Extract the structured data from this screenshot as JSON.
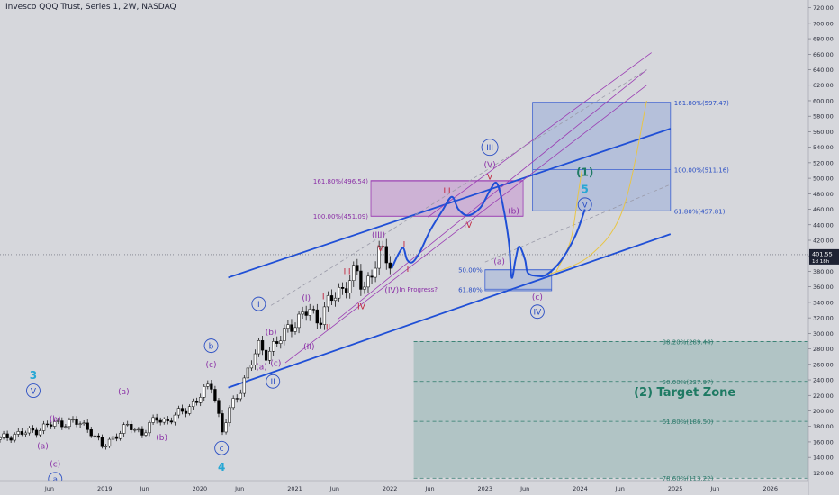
{
  "chart_data": {
    "type": "candlestick",
    "title": "Invesco QQQ Trust, Series 1, 2W, NASDAQ",
    "ylim": [
      110,
      730
    ],
    "y_ticks": [
      120,
      140,
      160,
      180,
      200,
      220,
      240,
      260,
      280,
      300,
      320,
      340,
      360,
      380,
      400,
      420,
      440,
      460,
      480,
      500,
      520,
      540,
      560,
      580,
      600,
      620,
      640,
      660,
      680,
      700,
      720
    ],
    "y_tick_labels": [
      "120.00",
      "140.00",
      "160.00",
      "180.00",
      "200.00",
      "220.00",
      "240.00",
      "260.00",
      "280.00",
      "300.00",
      "320.00",
      "340.00",
      "360.00",
      "380.00",
      "400.00",
      "420.00",
      "440.00",
      "460.00",
      "480.00",
      "500.00",
      "520.00",
      "540.00",
      "560.00",
      "580.00",
      "600.00",
      "620.00",
      "640.00",
      "660.00",
      "680.00",
      "700.00",
      "720.00"
    ],
    "x_range": [
      2017.9,
      2026.4
    ],
    "x_ticks": [
      {
        "t": 2018.42,
        "label": "Jun"
      },
      {
        "t": 2019.0,
        "label": "2019"
      },
      {
        "t": 2019.42,
        "label": "Jun"
      },
      {
        "t": 2020.0,
        "label": "2020"
      },
      {
        "t": 2020.42,
        "label": "Jun"
      },
      {
        "t": 2021.0,
        "label": "2021"
      },
      {
        "t": 2021.42,
        "label": "Jun"
      },
      {
        "t": 2022.0,
        "label": "2022"
      },
      {
        "t": 2022.42,
        "label": "Jun"
      },
      {
        "t": 2023.0,
        "label": "2023"
      },
      {
        "t": 2023.42,
        "label": "Jun"
      },
      {
        "t": 2024.0,
        "label": "2024"
      },
      {
        "t": 2024.42,
        "label": "Jun"
      },
      {
        "t": 2025.0,
        "label": "2025"
      },
      {
        "t": 2025.42,
        "label": "Jun"
      },
      {
        "t": 2026.0,
        "label": "2026"
      }
    ],
    "last_price": {
      "value": 401.55,
      "label": "401.55",
      "sublabel": "1d 18h"
    },
    "candles_anchor": [
      [
        2017.9,
        163
      ],
      [
        2018.05,
        170
      ],
      [
        2018.2,
        172
      ],
      [
        2018.4,
        181
      ],
      [
        2018.6,
        186
      ],
      [
        2018.75,
        183
      ],
      [
        2018.85,
        176
      ],
      [
        2018.98,
        152
      ],
      [
        2019.1,
        168
      ],
      [
        2019.25,
        180
      ],
      [
        2019.4,
        172
      ],
      [
        2019.55,
        190
      ],
      [
        2019.65,
        187
      ],
      [
        2019.8,
        197
      ],
      [
        2019.95,
        212
      ],
      [
        2020.05,
        224
      ],
      [
        2020.12,
        236
      ],
      [
        2020.18,
        210
      ],
      [
        2020.23,
        170
      ],
      [
        2020.3,
        196
      ],
      [
        2020.4,
        222
      ],
      [
        2020.5,
        250
      ],
      [
        2020.62,
        282
      ],
      [
        2020.7,
        276
      ],
      [
        2020.83,
        288
      ],
      [
        2020.95,
        312
      ],
      [
        2021.05,
        318
      ],
      [
        2021.15,
        330
      ],
      [
        2021.25,
        318
      ],
      [
        2021.35,
        338
      ],
      [
        2021.45,
        352
      ],
      [
        2021.55,
        366
      ],
      [
        2021.65,
        378
      ],
      [
        2021.72,
        355
      ],
      [
        2021.8,
        380
      ],
      [
        2021.9,
        403
      ],
      [
        2021.98,
        396
      ],
      [
        2022.02,
        384
      ]
    ],
    "trendlines": [
      {
        "name": "upper-channel",
        "p1": [
          2020.3,
          372
        ],
        "p2": [
          2024.95,
          564
        ],
        "color": "#1f4fd6",
        "width": 1.8
      },
      {
        "name": "lower-channel",
        "p1": [
          2020.3,
          230
        ],
        "p2": [
          2024.95,
          428
        ],
        "color": "#1f4fd6",
        "width": 1.8
      },
      {
        "name": "purple-upper",
        "p1": [
          2022.4,
          450
        ],
        "p2": [
          2024.75,
          662
        ],
        "color": "#9b3db3",
        "width": 0.8
      },
      {
        "name": "purple-mid",
        "p1": [
          2021.45,
          318
        ],
        "p2": [
          2024.7,
          640
        ],
        "color": "#9b3db3",
        "width": 0.8
      },
      {
        "name": "purple-lower",
        "p1": [
          2020.9,
          262
        ],
        "p2": [
          2024.7,
          620
        ],
        "color": "#9b3db3",
        "width": 0.8
      },
      {
        "name": "gray-dashed-upper",
        "p1": [
          2020.75,
          336
        ],
        "p2": [
          2024.7,
          640
        ],
        "color": "#9a9aa8",
        "width": 0.8,
        "dash": true
      },
      {
        "name": "gray-dashed-lower",
        "p1": [
          2023.0,
          392
        ],
        "p2": [
          2024.95,
          492
        ],
        "color": "#9a9aa8",
        "width": 0.8,
        "dash": true
      }
    ],
    "projection_path": [
      [
        2022.02,
        384
      ],
      [
        2022.08,
        400
      ],
      [
        2022.14,
        410
      ],
      [
        2022.18,
        395
      ],
      [
        2022.24,
        392
      ],
      [
        2022.32,
        406
      ],
      [
        2022.42,
        432
      ],
      [
        2022.55,
        458
      ],
      [
        2022.65,
        476
      ],
      [
        2022.72,
        460
      ],
      [
        2022.82,
        452
      ],
      [
        2022.95,
        462
      ],
      [
        2023.05,
        484
      ],
      [
        2023.12,
        494
      ],
      [
        2023.18,
        470
      ],
      [
        2023.25,
        418
      ],
      [
        2023.28,
        372
      ],
      [
        2023.32,
        395
      ],
      [
        2023.36,
        412
      ],
      [
        2023.42,
        395
      ],
      [
        2023.45,
        378
      ],
      [
        2023.55,
        374
      ],
      [
        2023.65,
        376
      ],
      [
        2023.8,
        394
      ],
      [
        2023.95,
        426
      ],
      [
        2024.05,
        460
      ]
    ],
    "yellow_curves": [
      [
        [
          2023.75,
          380
        ],
        [
          2023.9,
          420
        ],
        [
          2023.98,
          480
        ],
        [
          2024.02,
          512
        ]
      ],
      [
        [
          2023.65,
          375
        ],
        [
          2024.1,
          400
        ],
        [
          2024.45,
          460
        ],
        [
          2024.7,
          600
        ]
      ]
    ],
    "fib_boxes": [
      {
        "name": "purple-fib-box",
        "x1": 2021.8,
        "x2": 2023.4,
        "y1": 451,
        "y2": 497,
        "fill": "rgba(190,110,200,0.35)",
        "stroke": "#9b3db3",
        "levels": [
          {
            "value": 496.54,
            "label": "161.80%(496.54)"
          },
          {
            "value": 451.09,
            "label": "100.00%(451.09)"
          }
        ],
        "label_color": "#8a2fa6"
      },
      {
        "name": "blue-fib-box",
        "x1": 2023.5,
        "x2": 2024.95,
        "y1": 458,
        "y2": 598,
        "fill": "rgba(120,150,215,0.35)",
        "stroke": "#3b5fd0",
        "levels": [
          {
            "value": 597.47,
            "label": "161.80%(597.47)"
          },
          {
            "value": 511.16,
            "label": "100.00%(511.16)"
          },
          {
            "value": 457.81,
            "label": "61.80%(457.81)"
          }
        ],
        "label_color": "#2b4fc4"
      },
      {
        "name": "small-fib-box",
        "x1": 2023.0,
        "x2": 2023.7,
        "y1": 355,
        "y2": 382,
        "fill": "rgba(120,150,215,0.30)",
        "stroke": "#3b5fd0",
        "levels": [
          {
            "value": 382,
            "label": "50.00%"
          },
          {
            "value": 357,
            "label": "61.80%"
          }
        ],
        "label_color": "#2b4fc4"
      },
      {
        "name": "target-zone-box",
        "x1": 2022.25,
        "x2": 2026.4,
        "y1": 114,
        "y2": 290,
        "fill": "rgba(110,160,155,0.35)",
        "stroke": "none",
        "levels": [
          {
            "value": 289.44,
            "label": "38.20%(289.44)"
          },
          {
            "value": 237.97,
            "label": "50.00%(237.97)"
          },
          {
            "value": 186.5,
            "label": "61.80%(186.50)"
          },
          {
            "value": 113.22,
            "label": "78.60%(113.22)"
          }
        ],
        "label_color": "#2c7a6b"
      }
    ],
    "target_zone_label": {
      "text": "(2)  Target Zone",
      "t": 2025.1,
      "v": 219,
      "color": "#1e7a63"
    },
    "wave_labels": [
      {
        "text": "3",
        "t": 2018.25,
        "v": 246,
        "color": "#27a7d4",
        "size": 12,
        "bold": true
      },
      {
        "text": "V",
        "t": 2018.25,
        "v": 226,
        "color": "#2b4fc4",
        "size": 9,
        "circle": true
      },
      {
        "text": "(b)",
        "t": 2018.48,
        "v": 190,
        "color": "#8a2fa6",
        "size": 9
      },
      {
        "text": "(a)",
        "t": 2018.35,
        "v": 155,
        "color": "#8a2fa6",
        "size": 9
      },
      {
        "text": "(c)",
        "t": 2018.48,
        "v": 132,
        "color": "#8a2fa6",
        "size": 9
      },
      {
        "text": "a",
        "t": 2018.48,
        "v": 112,
        "color": "#2b4fc4",
        "size": 9,
        "circle": true
      },
      {
        "text": "(a)",
        "t": 2019.2,
        "v": 225,
        "color": "#8a2fa6",
        "size": 9
      },
      {
        "text": "(b)",
        "t": 2019.6,
        "v": 166,
        "color": "#8a2fa6",
        "size": 9
      },
      {
        "text": "b",
        "t": 2020.12,
        "v": 284,
        "color": "#2b4fc4",
        "size": 9,
        "circle": true
      },
      {
        "text": "(c)",
        "t": 2020.12,
        "v": 260,
        "color": "#8a2fa6",
        "size": 9
      },
      {
        "text": "c",
        "t": 2020.23,
        "v": 152,
        "color": "#2b4fc4",
        "size": 9,
        "circle": true
      },
      {
        "text": "4",
        "t": 2020.23,
        "v": 128,
        "color": "#27a7d4",
        "size": 12,
        "bold": true
      },
      {
        "text": "I",
        "t": 2020.62,
        "v": 338,
        "color": "#2b4fc4",
        "size": 9,
        "circle": true
      },
      {
        "text": "(b)",
        "t": 2020.75,
        "v": 302,
        "color": "#8a2fa6",
        "size": 9
      },
      {
        "text": "(a)",
        "t": 2020.65,
        "v": 257,
        "color": "#8a2fa6",
        "size": 9
      },
      {
        "text": "(c)",
        "t": 2020.8,
        "v": 262,
        "color": "#8a2fa6",
        "size": 9
      },
      {
        "text": "II",
        "t": 2020.77,
        "v": 238,
        "color": "#2b4fc4",
        "size": 9,
        "circle": true
      },
      {
        "text": "(I)",
        "t": 2021.12,
        "v": 346,
        "color": "#8a2fa6",
        "size": 9
      },
      {
        "text": "(II)",
        "t": 2021.15,
        "v": 283,
        "color": "#8a2fa6",
        "size": 9
      },
      {
        "text": "I",
        "t": 2021.3,
        "v": 348,
        "color": "#c0213a",
        "size": 9
      },
      {
        "text": "II",
        "t": 2021.35,
        "v": 308,
        "color": "#c0213a",
        "size": 9
      },
      {
        "text": "III",
        "t": 2021.55,
        "v": 380,
        "color": "#c0213a",
        "size": 9
      },
      {
        "text": "IV",
        "t": 2021.7,
        "v": 335,
        "color": "#c0213a",
        "size": 9
      },
      {
        "text": "(III)",
        "t": 2021.88,
        "v": 427,
        "color": "#8a2fa6",
        "size": 9
      },
      {
        "text": "V",
        "t": 2021.9,
        "v": 410,
        "color": "#c0213a",
        "size": 9
      },
      {
        "text": "(IV)",
        "t": 2022.02,
        "v": 356,
        "color": "#8a2fa6",
        "size": 9
      },
      {
        "text": "In Progress?",
        "t": 2022.3,
        "v": 357,
        "color": "#8a2fa6",
        "size": 7
      },
      {
        "text": "I",
        "t": 2022.15,
        "v": 415,
        "color": "#c0213a",
        "size": 9
      },
      {
        "text": "II",
        "t": 2022.2,
        "v": 383,
        "color": "#c0213a",
        "size": 9
      },
      {
        "text": "III",
        "t": 2022.6,
        "v": 484,
        "color": "#c0213a",
        "size": 9
      },
      {
        "text": "IV",
        "t": 2022.82,
        "v": 440,
        "color": "#c0213a",
        "size": 9
      },
      {
        "text": "III",
        "t": 2023.05,
        "v": 540,
        "color": "#2b4fc4",
        "size": 9,
        "circle": true
      },
      {
        "text": "(V)",
        "t": 2023.05,
        "v": 518,
        "color": "#8a2fa6",
        "size": 9
      },
      {
        "text": "V",
        "t": 2023.05,
        "v": 502,
        "color": "#c0213a",
        "size": 9
      },
      {
        "text": "(b)",
        "t": 2023.3,
        "v": 458,
        "color": "#8a2fa6",
        "size": 9
      },
      {
        "text": "(a)",
        "t": 2023.15,
        "v": 393,
        "color": "#8a2fa6",
        "size": 9
      },
      {
        "text": "(c)",
        "t": 2023.55,
        "v": 347,
        "color": "#8a2fa6",
        "size": 9
      },
      {
        "text": "IV",
        "t": 2023.55,
        "v": 328,
        "color": "#2b4fc4",
        "size": 9,
        "circle": true
      },
      {
        "text": "(1)",
        "t": 2024.05,
        "v": 508,
        "color": "#1e7a63",
        "size": 12,
        "bold": true
      },
      {
        "text": "5",
        "t": 2024.05,
        "v": 486,
        "color": "#27a7d4",
        "size": 12,
        "bold": true
      },
      {
        "text": "V",
        "t": 2024.05,
        "v": 466,
        "color": "#2b4fc4",
        "size": 9,
        "circle": true
      }
    ]
  }
}
